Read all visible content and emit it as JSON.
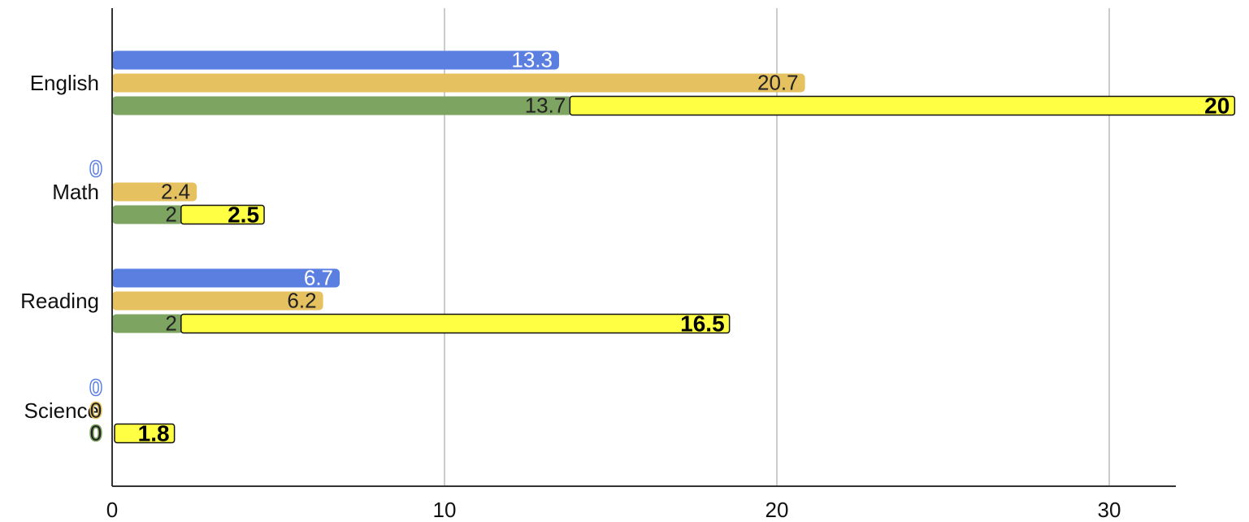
{
  "chart_data": {
    "type": "bar",
    "orientation": "horizontal",
    "stacked_segment": "the yellow series continues from the end of the green bar in each category",
    "categories": [
      "English",
      "Math",
      "Reading",
      "Science"
    ],
    "xlim": [
      0,
      32
    ],
    "xticks": [
      0,
      10,
      20,
      30
    ],
    "grid": true,
    "legend": "none",
    "series": [
      {
        "color": "#5b7fe0",
        "values": [
          13.3,
          0,
          6.7,
          0
        ],
        "labels": [
          "13.3",
          "0",
          "6.7",
          "0"
        ]
      },
      {
        "color": "#e5c160",
        "values": [
          20.7,
          2.4,
          6.2,
          0
        ],
        "labels": [
          "20.7",
          "2.4",
          "6.2",
          "0"
        ]
      },
      {
        "color": "#7ea462",
        "values": [
          13.7,
          2,
          2,
          0
        ],
        "labels": [
          "13.7",
          "2",
          "2",
          "0"
        ]
      },
      {
        "color": "#ffff44",
        "values": [
          20,
          2.5,
          16.5,
          1.8
        ],
        "labels": [
          "20",
          "2.5",
          "16.5",
          "1.8"
        ]
      }
    ]
  }
}
